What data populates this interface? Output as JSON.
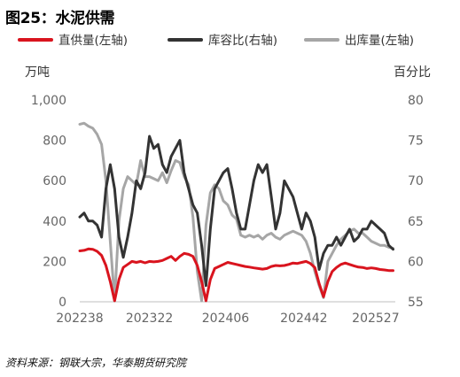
{
  "figure": {
    "title": "图25：水泥供需",
    "source": "资料来源：钢联大宗，华泰期货研究院"
  },
  "chart_data": {
    "type": "line",
    "title": "图25：水泥供需",
    "left_unit": "万吨",
    "right_unit": "百分比",
    "left_axis": {
      "ylim": [
        0,
        1000
      ],
      "ticks": [
        "0",
        "200",
        "400",
        "600",
        "800",
        "1,000"
      ]
    },
    "right_axis": {
      "ylim": [
        55,
        80
      ],
      "ticks": [
        "55",
        "60",
        "65",
        "70",
        "75",
        "80"
      ]
    },
    "x_ticks": [
      "202238",
      "202322",
      "202406",
      "202442",
      "202527"
    ],
    "grid": false,
    "legend_position": "top",
    "x_range": [
      0,
      145
    ],
    "x_tick_positions": [
      0,
      32,
      67,
      103,
      136
    ],
    "series": [
      {
        "name": "直供量(左轴)",
        "axis": "left",
        "color": "#d9141e",
        "x": [
          0,
          2,
          4,
          6,
          8,
          10,
          12,
          14,
          16,
          18,
          20,
          22,
          24,
          26,
          28,
          30,
          32,
          34,
          36,
          38,
          40,
          42,
          44,
          46,
          48,
          50,
          52,
          54,
          56,
          58,
          60,
          62,
          64,
          66,
          68,
          70,
          72,
          74,
          76,
          78,
          80,
          82,
          84,
          86,
          88,
          90,
          92,
          94,
          96,
          98,
          100,
          102,
          104,
          106,
          108,
          110,
          112,
          114,
          116,
          118,
          120,
          122,
          124,
          126,
          128,
          130,
          132,
          134,
          136,
          138,
          140,
          142,
          144
        ],
        "values": [
          252,
          255,
          262,
          260,
          250,
          230,
          180,
          100,
          5,
          110,
          170,
          185,
          200,
          195,
          200,
          193,
          200,
          198,
          200,
          205,
          215,
          225,
          205,
          225,
          240,
          235,
          225,
          180,
          100,
          5,
          110,
          165,
          175,
          185,
          195,
          190,
          185,
          180,
          175,
          172,
          168,
          165,
          162,
          165,
          175,
          180,
          178,
          180,
          185,
          192,
          190,
          195,
          200,
          190,
          170,
          90,
          25,
          100,
          150,
          170,
          185,
          192,
          185,
          178,
          172,
          170,
          165,
          168,
          165,
          160,
          158,
          155,
          155
        ]
      },
      {
        "name": "库容比(右轴)",
        "axis": "right",
        "color": "#333333",
        "x": [
          0,
          2,
          4,
          6,
          8,
          10,
          12,
          14,
          16,
          18,
          20,
          22,
          24,
          26,
          28,
          30,
          32,
          34,
          36,
          38,
          40,
          42,
          44,
          46,
          48,
          50,
          52,
          54,
          56,
          58,
          60,
          62,
          64,
          66,
          68,
          70,
          72,
          74,
          76,
          78,
          80,
          82,
          84,
          86,
          88,
          90,
          92,
          94,
          96,
          98,
          100,
          102,
          104,
          106,
          108,
          110,
          112,
          114,
          116,
          118,
          120,
          122,
          124,
          126,
          128,
          130,
          132,
          134,
          136,
          138,
          140,
          142,
          144
        ],
        "values": [
          65.5,
          66,
          65,
          65,
          64.5,
          63,
          69,
          72,
          69,
          63,
          60.5,
          63,
          66,
          70,
          69,
          71,
          75.5,
          74,
          74.5,
          72,
          71,
          73,
          74,
          75,
          71,
          69,
          67,
          66,
          62,
          57,
          64,
          69,
          70,
          71,
          71.5,
          69,
          66,
          64,
          64,
          67,
          70,
          72,
          71,
          72,
          68,
          64,
          66,
          70,
          69,
          68,
          66,
          64,
          66,
          65,
          63,
          59,
          61,
          62,
          62,
          63,
          62,
          63,
          64,
          62.5,
          63,
          64,
          64,
          65,
          64.5,
          64,
          63.5,
          62,
          61.5
        ]
      },
      {
        "name": "出库量(左轴)",
        "axis": "left",
        "color": "#a6a6a6",
        "x": [
          0,
          2,
          4,
          6,
          8,
          10,
          12,
          14,
          16,
          18,
          20,
          22,
          24,
          26,
          28,
          30,
          32,
          34,
          36,
          38,
          40,
          42,
          44,
          46,
          48,
          50,
          52,
          54,
          56,
          58,
          60,
          62,
          64,
          66,
          68,
          70,
          72,
          74,
          76,
          78,
          80,
          82,
          84,
          86,
          88,
          90,
          92,
          94,
          96,
          98,
          100,
          102,
          104,
          106,
          108,
          110,
          112,
          114,
          116,
          118,
          120,
          122,
          124,
          126,
          128,
          130,
          132,
          134,
          136,
          138,
          140,
          142,
          144
        ],
        "values": [
          880,
          885,
          870,
          860,
          830,
          780,
          600,
          300,
          5,
          400,
          560,
          620,
          600,
          580,
          700,
          620,
          620,
          610,
          600,
          640,
          590,
          650,
          700,
          690,
          620,
          580,
          420,
          150,
          5,
          380,
          540,
          580,
          560,
          500,
          480,
          430,
          410,
          330,
          320,
          330,
          320,
          330,
          310,
          330,
          340,
          320,
          310,
          330,
          340,
          350,
          340,
          330,
          300,
          240,
          150,
          80,
          20,
          200,
          240,
          280,
          310,
          330,
          350,
          360,
          340,
          340,
          320,
          300,
          290,
          280,
          280,
          270,
          265
        ]
      }
    ]
  }
}
